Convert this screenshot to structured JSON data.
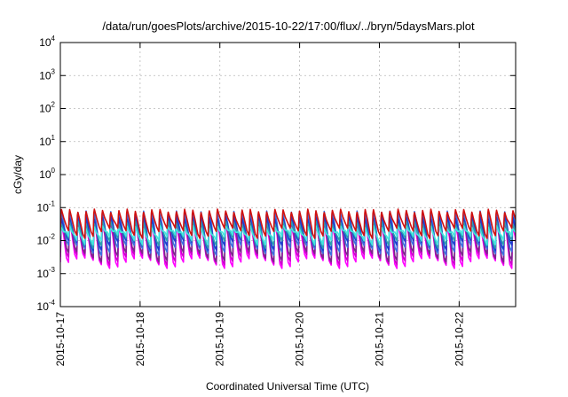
{
  "chart_data": {
    "type": "line",
    "title": "/data/run/goesPlots/archive/2015-10-22/17:00/flux/../bryn/5daysMars.plot",
    "xlabel": "Coordinated Universal Time (UTC)",
    "ylabel": "cGy/day",
    "yscale": "log",
    "ylim": [
      0.0001,
      10000
    ],
    "y_ticks": [
      {
        "base": "10",
        "exp": "-4",
        "value": 0.0001
      },
      {
        "base": "10",
        "exp": "-3",
        "value": 0.001
      },
      {
        "base": "10",
        "exp": "-2",
        "value": 0.01
      },
      {
        "base": "10",
        "exp": "-1",
        "value": 0.1
      },
      {
        "base": "10",
        "exp": "0",
        "value": 1
      },
      {
        "base": "10",
        "exp": "1",
        "value": 10
      },
      {
        "base": "10",
        "exp": "2",
        "value": 100
      },
      {
        "base": "10",
        "exp": "3",
        "value": 1000
      },
      {
        "base": "10",
        "exp": "4",
        "value": 10000
      }
    ],
    "xlim": [
      "2015-10-17T00:00",
      "2015-10-22T17:00"
    ],
    "x_ticks": [
      "2015-10-17",
      "2015-10-18",
      "2015-10-19",
      "2015-10-20",
      "2015-10-21",
      "2015-10-22"
    ],
    "grid": true,
    "legend": "none",
    "cycle_hours": 2.47,
    "series": [
      {
        "color": "#ff00ff",
        "peak": 0.03,
        "trough": 0.0022
      },
      {
        "color": "#cc00cc",
        "peak": 0.036,
        "trough": 0.0028
      },
      {
        "color": "#7a2a8a",
        "peak": 0.045,
        "trough": 0.0035
      },
      {
        "color": "#3b6fe0",
        "peak": 0.07,
        "trough": 0.0055
      },
      {
        "color": "#1a3fd0",
        "peak": 0.05,
        "trough": 0.0075
      },
      {
        "color": "#2aa0b0",
        "peak": 0.035,
        "trough": 0.009
      },
      {
        "color": "#40e8e0",
        "peak": 0.025,
        "trough": 0.011
      },
      {
        "color": "#d01010",
        "peak": 0.08,
        "trough": 0.018
      }
    ]
  }
}
